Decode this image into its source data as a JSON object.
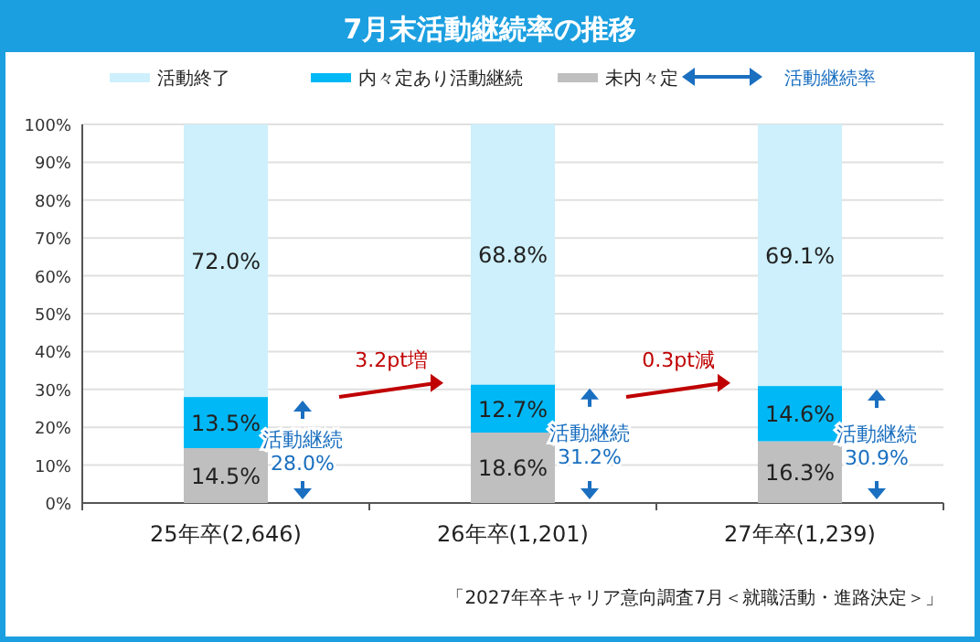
{
  "chart_data": {
    "type": "bar",
    "stacked": true,
    "title": "7月末活動継続率の推移",
    "categories": [
      "25年卒(2,646)",
      "26年卒(1,201)",
      "27年卒(1,239)"
    ],
    "series": [
      {
        "name": "未内々定",
        "color": "#bfbfbf",
        "values": [
          14.5,
          18.6,
          16.3
        ],
        "value_labels": [
          "14.5%",
          "18.6%",
          "16.3%"
        ]
      },
      {
        "name": "内々定あり活動継続",
        "color": "#00b8f5",
        "values": [
          13.5,
          12.7,
          14.6
        ],
        "value_labels": [
          "13.5%",
          "12.7%",
          "14.6%"
        ]
      },
      {
        "name": "活動終了",
        "color": "#cdf0fc",
        "values": [
          72.0,
          68.8,
          69.1
        ],
        "value_labels": [
          "72.0%",
          "68.8%",
          "69.1%"
        ]
      }
    ],
    "ylim": [
      0,
      100
    ],
    "yticks": [
      {
        "value": 0,
        "label": "0%"
      },
      {
        "value": 10,
        "label": "10%"
      },
      {
        "value": 20,
        "label": "20%"
      },
      {
        "value": 30,
        "label": "30%"
      },
      {
        "value": 40,
        "label": "40%"
      },
      {
        "value": 50,
        "label": "50%"
      },
      {
        "value": 60,
        "label": "60%"
      },
      {
        "value": 70,
        "label": "70%"
      },
      {
        "value": 80,
        "label": "80%"
      },
      {
        "value": 90,
        "label": "90%"
      },
      {
        "value": 100,
        "label": "100%"
      }
    ],
    "grid": "y",
    "legend": "top",
    "annotations": [
      "活動継続率",
      {
        "text": "活動継続 28.0%",
        "x": "25年卒(2,646)",
        "y": 28.0
      },
      {
        "text": "活動継続 31.2%",
        "x": "26年卒(1,201)",
        "y": 31.2
      },
      {
        "text": "活動継続 30.9%",
        "x": "27年卒(1,239)",
        "y": 30.9
      },
      "3.2pt増",
      "0.3pt減",
      "「2027年卒キャリア意向調査7月＜就職活動・進路決定＞」"
    ]
  }
}
